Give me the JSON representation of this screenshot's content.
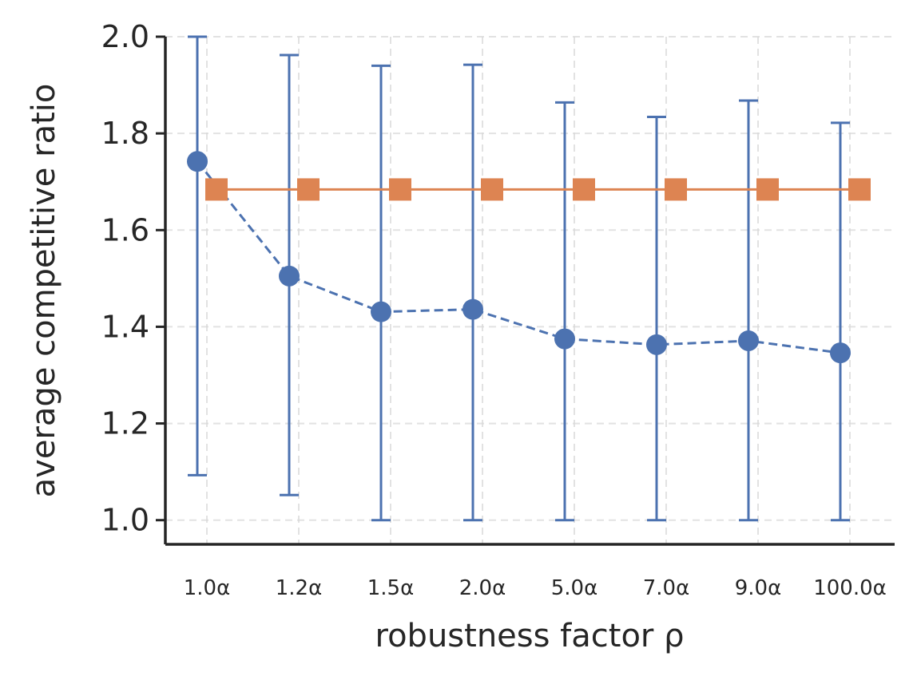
{
  "chart_data": {
    "type": "line",
    "title": "",
    "xlabel": "robustness factor ρ",
    "ylabel": "average competitive ratio",
    "categories": [
      "1.0α",
      "1.2α",
      "1.5α",
      "2.0α",
      "5.0α",
      "7.0α",
      "9.0α",
      "100.0α"
    ],
    "ylim": [
      0.95,
      2.0
    ],
    "yticks": [
      "1.0",
      "1.2",
      "1.4",
      "1.6",
      "1.8",
      "2.0"
    ],
    "ytick_values": [
      1.0,
      1.2,
      1.4,
      1.6,
      1.8,
      2.0
    ],
    "grid": true,
    "legend": "none",
    "series": [
      {
        "color": "#4c72b0",
        "marker": "circle",
        "linestyle": "dashed",
        "values": [
          1.742,
          1.505,
          1.431,
          1.436,
          1.375,
          1.363,
          1.371,
          1.346
        ],
        "error_lower": [
          1.093,
          1.052,
          1.0,
          1.0,
          1.0,
          1.0,
          1.0,
          1.0
        ],
        "error_upper": [
          2.0,
          1.962,
          1.94,
          1.942,
          1.864,
          1.834,
          1.868,
          1.822
        ]
      },
      {
        "color": "#dd8452",
        "marker": "square",
        "linestyle": "solid",
        "values": [
          1.684,
          1.684,
          1.684,
          1.684,
          1.684,
          1.684,
          1.684,
          1.684
        ]
      }
    ]
  }
}
